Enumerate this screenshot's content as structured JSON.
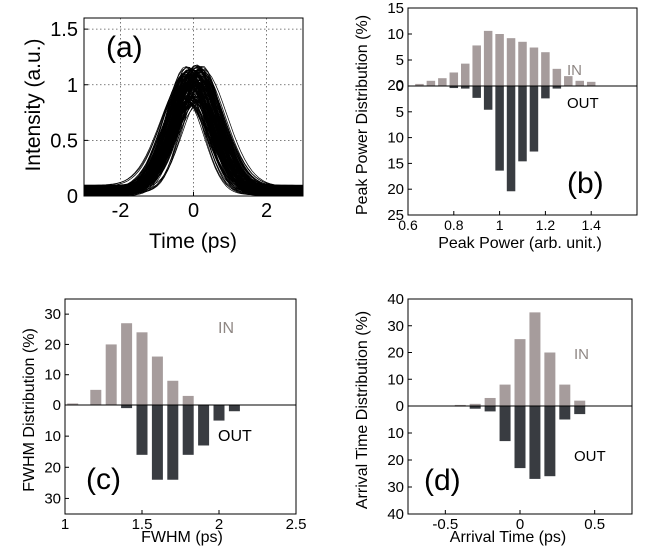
{
  "colors": {
    "in_bar": "#a69c9c",
    "out_bar": "#393c41",
    "in_label": "#8f8784",
    "axis": "#000000",
    "trace": "#000000"
  },
  "chart_data": [
    {
      "id": "a",
      "type": "line",
      "panel_label": "(a)",
      "xlabel": "Time (ps)",
      "ylabel": "Intensity (a.u.)",
      "xlim": [
        -3,
        3
      ],
      "ylim": [
        0,
        1.6
      ],
      "xticks": [
        "-2",
        "0",
        "2"
      ],
      "yticks": [
        "0",
        "0.5",
        "1",
        "1.5"
      ],
      "grid": "dotted",
      "description_series": {
        "shape": "gaussian",
        "center": 0.0,
        "fwhm": 1.4,
        "amplitude_range": [
          0.83,
          1.18
        ],
        "baseline_range": [
          0.0,
          0.1
        ]
      }
    },
    {
      "id": "b",
      "type": "bar",
      "panel_label": "(b)",
      "xlabel": "Peak Power (arb. unit.)",
      "ylabel": "Peak Power Distribution (%)",
      "xlim": [
        0.6,
        1.6
      ],
      "xticks": [
        "0.6",
        "0.8",
        "1",
        "1.2",
        "1.4"
      ],
      "in_label": "IN",
      "out_label": "OUT",
      "in_ylim": [
        0,
        15
      ],
      "in_yticks": [
        "5",
        "10",
        "15"
      ],
      "out_ylim": [
        0,
        25
      ],
      "out_yticks": [
        "20",
        "0",
        "5",
        "10",
        "15",
        "20",
        "25"
      ],
      "in_bars": {
        "x": [
          0.65,
          0.7,
          0.75,
          0.8,
          0.85,
          0.9,
          0.95,
          1.0,
          1.05,
          1.1,
          1.15,
          1.2,
          1.25,
          1.3,
          1.35,
          1.4
        ],
        "values": [
          0.4,
          1.0,
          1.5,
          2.6,
          4.3,
          7.8,
          10.6,
          10.0,
          9.2,
          8.5,
          7.4,
          6.5,
          3.3,
          1.9,
          1.0,
          0.8
        ]
      },
      "out_bars": {
        "x": [
          0.8,
          0.85,
          0.9,
          0.95,
          1.0,
          1.05,
          1.1,
          1.15,
          1.2,
          1.25
        ],
        "values": [
          0.4,
          0.5,
          2.3,
          4.6,
          16.4,
          20.4,
          14.6,
          12.7,
          2.4,
          0.5
        ]
      }
    },
    {
      "id": "c",
      "type": "bar",
      "panel_label": "(c)",
      "xlabel": "FWHM (ps)",
      "ylabel": "FWHM Distribution (%)",
      "xlim": [
        1,
        2.5
      ],
      "xticks": [
        "1",
        "1.5",
        "2",
        "2.5"
      ],
      "in_label": "IN",
      "out_label": "OUT",
      "in_ylim": [
        0,
        35
      ],
      "in_yticks": [
        "0",
        "10",
        "20",
        "30"
      ],
      "out_ylim": [
        0,
        35
      ],
      "out_yticks": [
        "10",
        "20",
        "30"
      ],
      "in_bars": {
        "x": [
          1.05,
          1.2,
          1.3,
          1.4,
          1.5,
          1.6,
          1.7,
          1.8
        ],
        "values": [
          0.5,
          5.0,
          20.0,
          27.0,
          24.0,
          16.0,
          8.0,
          3.0
        ]
      },
      "out_bars": {
        "x": [
          1.4,
          1.5,
          1.6,
          1.7,
          1.8,
          1.9,
          2.0,
          2.1
        ],
        "values": [
          1.0,
          16.0,
          24.0,
          24.0,
          16.0,
          13.0,
          5.0,
          2.0
        ]
      }
    },
    {
      "id": "d",
      "type": "bar",
      "panel_label": "(d)",
      "xlabel": "Arrival Time (ps)",
      "ylabel": "Arrival Time Distribution (%)",
      "xlim": [
        -0.75,
        0.75
      ],
      "xticks": [
        "-0.5",
        "0",
        "0.5"
      ],
      "in_label": "IN",
      "out_label": "OUT",
      "in_ylim": [
        0,
        40
      ],
      "in_yticks": [
        "0",
        "10",
        "20",
        "30",
        "40"
      ],
      "out_ylim": [
        0,
        40
      ],
      "out_yticks": [
        "10",
        "20",
        "30",
        "40"
      ],
      "in_bars": {
        "x": [
          -0.4,
          -0.3,
          -0.2,
          -0.1,
          0.0,
          0.1,
          0.2,
          0.3,
          0.4
        ],
        "values": [
          0.4,
          0.8,
          3.0,
          8.0,
          25.0,
          35.0,
          20.0,
          8.0,
          2.0
        ]
      },
      "out_bars": {
        "x": [
          -0.4,
          -0.3,
          -0.2,
          -0.1,
          0.0,
          0.1,
          0.2,
          0.3,
          0.4
        ],
        "values": [
          0.2,
          1.0,
          2.0,
          13.0,
          23.0,
          27.0,
          26.0,
          5.0,
          3.0
        ]
      }
    }
  ]
}
